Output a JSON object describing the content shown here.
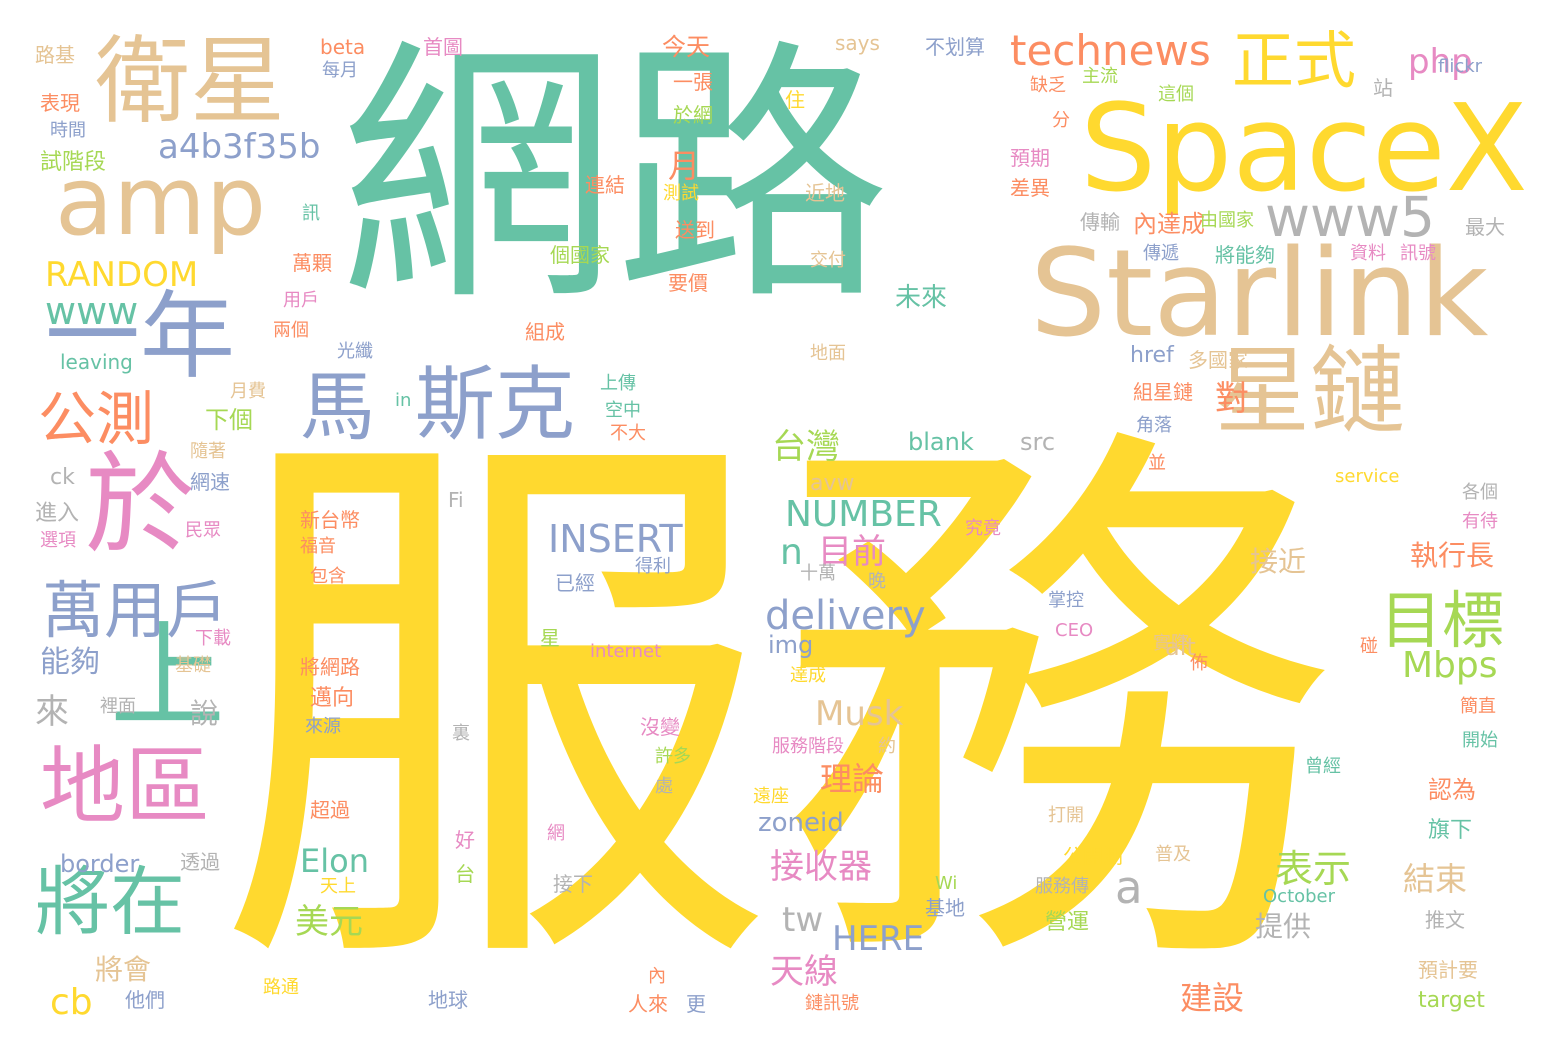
{
  "palette": {
    "yellow": "#FFD92F",
    "green": "#66C2A5",
    "tan": "#E5C494",
    "blue": "#8DA0CB",
    "pink": "#E78AC3",
    "orange": "#FC8D62",
    "lime": "#A6D854",
    "grey": "#B3B3B3"
  },
  "words": [
    {
      "text": "服務",
      "color": "yellow"
    },
    {
      "text": "網路",
      "color": "green"
    },
    {
      "text": "SpaceX",
      "color": "yellow"
    },
    {
      "text": "Starlink",
      "color": "tan"
    },
    {
      "text": "衛星",
      "color": "tan"
    },
    {
      "text": "amp",
      "color": "tan"
    },
    {
      "text": "一年",
      "color": "blue"
    },
    {
      "text": "於",
      "color": "pink"
    },
    {
      "text": "上",
      "color": "green"
    },
    {
      "text": "星鏈",
      "color": "tan"
    },
    {
      "text": "斯克",
      "color": "blue"
    },
    {
      "text": "馬",
      "color": "blue"
    },
    {
      "text": "地區",
      "color": "pink"
    },
    {
      "text": "將在",
      "color": "green"
    },
    {
      "text": "萬用戶",
      "color": "blue"
    },
    {
      "text": "公測",
      "color": "orange"
    },
    {
      "text": "正式",
      "color": "yellow"
    },
    {
      "text": "目標",
      "color": "lime"
    },
    {
      "text": "www5",
      "color": "grey"
    },
    {
      "text": "technews",
      "color": "orange"
    },
    {
      "text": "a4b3f35b",
      "color": "blue"
    },
    {
      "text": "php",
      "color": "pink"
    },
    {
      "text": "RANDOM",
      "color": "yellow"
    },
    {
      "text": "www",
      "color": "green"
    },
    {
      "text": "INSERT",
      "color": "blue"
    },
    {
      "text": "NUMBER",
      "color": "green"
    },
    {
      "text": "delivery",
      "color": "blue"
    },
    {
      "text": "a",
      "color": "grey"
    },
    {
      "text": "台灣",
      "color": "lime"
    },
    {
      "text": "對",
      "color": "orange"
    },
    {
      "text": "n",
      "color": "green"
    },
    {
      "text": "目前",
      "color": "pink"
    },
    {
      "text": "Mbps",
      "color": "lime"
    },
    {
      "text": "Musk",
      "color": "tan"
    },
    {
      "text": "理論",
      "color": "orange"
    },
    {
      "text": "Elon",
      "color": "green"
    },
    {
      "text": "接收器",
      "color": "pink"
    },
    {
      "text": "tw",
      "color": "grey"
    },
    {
      "text": "HERE",
      "color": "blue"
    },
    {
      "text": "表示",
      "color": "lime"
    },
    {
      "text": "天線",
      "color": "pink"
    },
    {
      "text": "美元",
      "color": "lime"
    },
    {
      "text": "cb",
      "color": "yellow"
    },
    {
      "text": "將會",
      "color": "tan"
    },
    {
      "text": "結束",
      "color": "tan"
    },
    {
      "text": "提供",
      "color": "grey"
    },
    {
      "text": "建設",
      "color": "orange"
    },
    {
      "text": "執行長",
      "color": "orange"
    },
    {
      "text": "接近",
      "color": "tan"
    },
    {
      "text": "能夠",
      "color": "blue"
    },
    {
      "text": "來",
      "color": "grey"
    },
    {
      "text": "說",
      "color": "grey"
    },
    {
      "text": "zoneid",
      "color": "blue"
    },
    {
      "text": "border",
      "color": "blue"
    },
    {
      "text": "blank",
      "color": "green"
    },
    {
      "text": "src",
      "color": "grey"
    },
    {
      "text": "avw",
      "color": "tan"
    },
    {
      "text": "img",
      "color": "blue"
    },
    {
      "text": "alt",
      "color": "tan"
    },
    {
      "text": "href",
      "color": "blue"
    },
    {
      "text": "多國家",
      "color": "tan"
    },
    {
      "text": "未來",
      "color": "green"
    },
    {
      "text": "內達成",
      "color": "orange"
    },
    {
      "text": "今天",
      "color": "orange"
    },
    {
      "text": "一張",
      "color": "orange"
    },
    {
      "text": "於網",
      "color": "lime"
    },
    {
      "text": "月",
      "color": "orange"
    },
    {
      "text": "下個",
      "color": "lime"
    },
    {
      "text": "月費",
      "color": "tan"
    },
    {
      "text": "上傳",
      "color": "green"
    },
    {
      "text": "空中",
      "color": "green"
    },
    {
      "text": "不大",
      "color": "orange"
    },
    {
      "text": "組成",
      "color": "orange"
    },
    {
      "text": "要價",
      "color": "orange"
    },
    {
      "text": "交付",
      "color": "tan"
    },
    {
      "text": "近地",
      "color": "tan"
    },
    {
      "text": "地面",
      "color": "tan"
    },
    {
      "text": "光纖",
      "color": "blue"
    },
    {
      "text": "leaving",
      "color": "green"
    },
    {
      "text": "in",
      "color": "green"
    },
    {
      "text": "ck",
      "color": "grey"
    },
    {
      "text": "進入",
      "color": "grey"
    },
    {
      "text": "網速",
      "color": "blue"
    },
    {
      "text": "隨著",
      "color": "tan"
    },
    {
      "text": "民眾",
      "color": "pink"
    },
    {
      "text": "選項",
      "color": "pink"
    },
    {
      "text": "Fi",
      "color": "grey"
    },
    {
      "text": "新台幣",
      "color": "orange"
    },
    {
      "text": "福音",
      "color": "orange"
    },
    {
      "text": "包含",
      "color": "orange"
    },
    {
      "text": "究竟",
      "color": "pink"
    },
    {
      "text": "十萬",
      "color": "grey"
    },
    {
      "text": "晚",
      "color": "grey"
    },
    {
      "text": "已經",
      "color": "blue"
    },
    {
      "text": "得利",
      "color": "blue"
    },
    {
      "text": "星",
      "color": "lime"
    },
    {
      "text": "internet",
      "color": "pink"
    },
    {
      "text": "下載",
      "color": "pink"
    },
    {
      "text": "基礎",
      "color": "tan"
    },
    {
      "text": "裡面",
      "color": "grey"
    },
    {
      "text": "將網路",
      "color": "orange"
    },
    {
      "text": "邁向",
      "color": "orange"
    },
    {
      "text": "來源",
      "color": "blue"
    },
    {
      "text": "裏",
      "color": "grey"
    },
    {
      "text": "沒變",
      "color": "pink"
    },
    {
      "text": "許多",
      "color": "lime"
    },
    {
      "text": "服務階段",
      "color": "pink"
    },
    {
      "text": "約",
      "color": "tan"
    },
    {
      "text": "處",
      "color": "grey"
    },
    {
      "text": "遠座",
      "color": "yellow"
    },
    {
      "text": "超過",
      "color": "orange"
    },
    {
      "text": "網",
      "color": "pink"
    },
    {
      "text": "好",
      "color": "pink"
    },
    {
      "text": "台",
      "color": "lime"
    },
    {
      "text": "透過",
      "color": "grey"
    },
    {
      "text": "天上",
      "color": "yellow"
    },
    {
      "text": "接下",
      "color": "grey"
    },
    {
      "text": "路通",
      "color": "yellow"
    },
    {
      "text": "他們",
      "color": "blue"
    },
    {
      "text": "地球",
      "color": "blue"
    },
    {
      "text": "內",
      "color": "orange"
    },
    {
      "text": "人來",
      "color": "orange"
    },
    {
      "text": "更",
      "color": "blue"
    },
    {
      "text": "鏈訊號",
      "color": "orange"
    },
    {
      "text": "Wi",
      "color": "lime"
    },
    {
      "text": "基地",
      "color": "blue"
    },
    {
      "text": "服務傳",
      "color": "grey"
    },
    {
      "text": "October",
      "color": "green"
    },
    {
      "text": "營運",
      "color": "lime"
    },
    {
      "text": "推文",
      "color": "grey"
    },
    {
      "text": "預計要",
      "color": "tan"
    },
    {
      "text": "target",
      "color": "lime"
    },
    {
      "text": "公開測",
      "color": "yellow"
    },
    {
      "text": "普及",
      "color": "tan"
    },
    {
      "text": "打開",
      "color": "tan"
    },
    {
      "text": "曾經",
      "color": "green"
    },
    {
      "text": "開始",
      "color": "green"
    },
    {
      "text": "認為",
      "color": "orange"
    },
    {
      "text": "旗下",
      "color": "green"
    },
    {
      "text": "簡直",
      "color": "orange"
    },
    {
      "text": "達成",
      "color": "yellow"
    },
    {
      "text": "實際",
      "color": "tan"
    },
    {
      "text": "碰",
      "color": "orange"
    },
    {
      "text": "佈",
      "color": "orange"
    },
    {
      "text": "CEO",
      "color": "pink"
    },
    {
      "text": "掌控",
      "color": "blue"
    },
    {
      "text": "各個",
      "color": "grey"
    },
    {
      "text": "有待",
      "color": "pink"
    },
    {
      "text": "service",
      "color": "yellow"
    },
    {
      "text": "並",
      "color": "orange"
    },
    {
      "text": "角落",
      "color": "blue"
    },
    {
      "text": "組星鏈",
      "color": "orange"
    },
    {
      "text": "傳輸",
      "color": "grey"
    },
    {
      "text": "預期",
      "color": "pink"
    },
    {
      "text": "差異",
      "color": "orange"
    },
    {
      "text": "分",
      "color": "orange"
    },
    {
      "text": "缺乏",
      "color": "orange"
    },
    {
      "text": "主流",
      "color": "lime"
    },
    {
      "text": "這個",
      "color": "lime"
    },
    {
      "text": "站",
      "color": "grey"
    },
    {
      "text": "flickr",
      "color": "blue"
    },
    {
      "text": "不划算",
      "color": "blue"
    },
    {
      "text": "says",
      "color": "tan"
    },
    {
      "text": "首圖",
      "color": "pink"
    },
    {
      "text": "beta",
      "color": "orange"
    },
    {
      "text": "每月",
      "color": "blue"
    },
    {
      "text": "路基",
      "color": "tan"
    },
    {
      "text": "表現",
      "color": "orange"
    },
    {
      "text": "時間",
      "color": "blue"
    },
    {
      "text": "試階段",
      "color": "lime"
    },
    {
      "text": "訊",
      "color": "green"
    },
    {
      "text": "萬顆",
      "color": "orange"
    },
    {
      "text": "用戶",
      "color": "pink"
    },
    {
      "text": "兩個",
      "color": "orange"
    },
    {
      "text": "連結",
      "color": "orange"
    },
    {
      "text": "測試",
      "color": "yellow"
    },
    {
      "text": "送到",
      "color": "orange"
    },
    {
      "text": "個國家",
      "color": "lime"
    },
    {
      "text": "住",
      "color": "yellow"
    },
    {
      "text": "由國家",
      "color": "lime"
    },
    {
      "text": "最大",
      "color": "grey"
    },
    {
      "text": "資料",
      "color": "pink"
    },
    {
      "text": "訊號",
      "color": "pink"
    },
    {
      "text": "傳遞",
      "color": "blue"
    },
    {
      "text": "將能夠",
      "color": "green"
    }
  ]
}
